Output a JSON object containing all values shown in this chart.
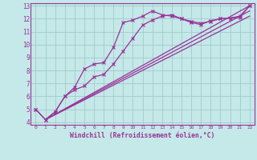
{
  "xlabel": "Windchill (Refroidissement éolien,°C)",
  "xlim": [
    -0.5,
    22.5
  ],
  "ylim": [
    3.8,
    13.2
  ],
  "xticks": [
    0,
    1,
    2,
    3,
    4,
    5,
    6,
    7,
    8,
    9,
    10,
    11,
    12,
    13,
    14,
    15,
    16,
    17,
    18,
    19,
    20,
    21,
    22
  ],
  "yticks": [
    4,
    5,
    6,
    7,
    8,
    9,
    10,
    11,
    12,
    13
  ],
  "background_color": "#c5e8e8",
  "grid_color": "#a0cccc",
  "line_color": "#993399",
  "curve1_x": [
    0,
    1,
    2,
    3,
    4,
    5,
    6,
    7,
    8,
    9,
    10,
    11,
    12,
    13,
    14,
    15,
    16,
    17,
    18,
    19,
    20,
    21,
    22
  ],
  "curve1_y": [
    5.0,
    4.2,
    4.8,
    6.0,
    6.7,
    8.1,
    8.5,
    8.6,
    9.8,
    11.7,
    11.9,
    12.2,
    12.6,
    12.3,
    12.2,
    12.0,
    11.8,
    11.65,
    11.8,
    12.0,
    12.05,
    12.2,
    13.0
  ],
  "curve2_x": [
    0,
    1,
    2,
    3,
    4,
    5,
    6,
    7,
    8,
    9,
    10,
    11,
    12,
    13,
    14,
    15,
    16,
    17,
    18,
    19,
    20,
    21,
    22
  ],
  "curve2_y": [
    5.0,
    4.2,
    4.8,
    6.0,
    6.5,
    6.8,
    7.5,
    7.7,
    8.5,
    9.5,
    10.5,
    11.5,
    11.9,
    12.2,
    12.3,
    12.0,
    11.7,
    11.55,
    11.85,
    12.0,
    12.05,
    12.1,
    13.0
  ],
  "line1_x": [
    1,
    22
  ],
  "line1_y": [
    4.2,
    13.0
  ],
  "line2_x": [
    1,
    22
  ],
  "line2_y": [
    4.2,
    12.6
  ],
  "line3_x": [
    1,
    22
  ],
  "line3_y": [
    4.2,
    12.2
  ]
}
